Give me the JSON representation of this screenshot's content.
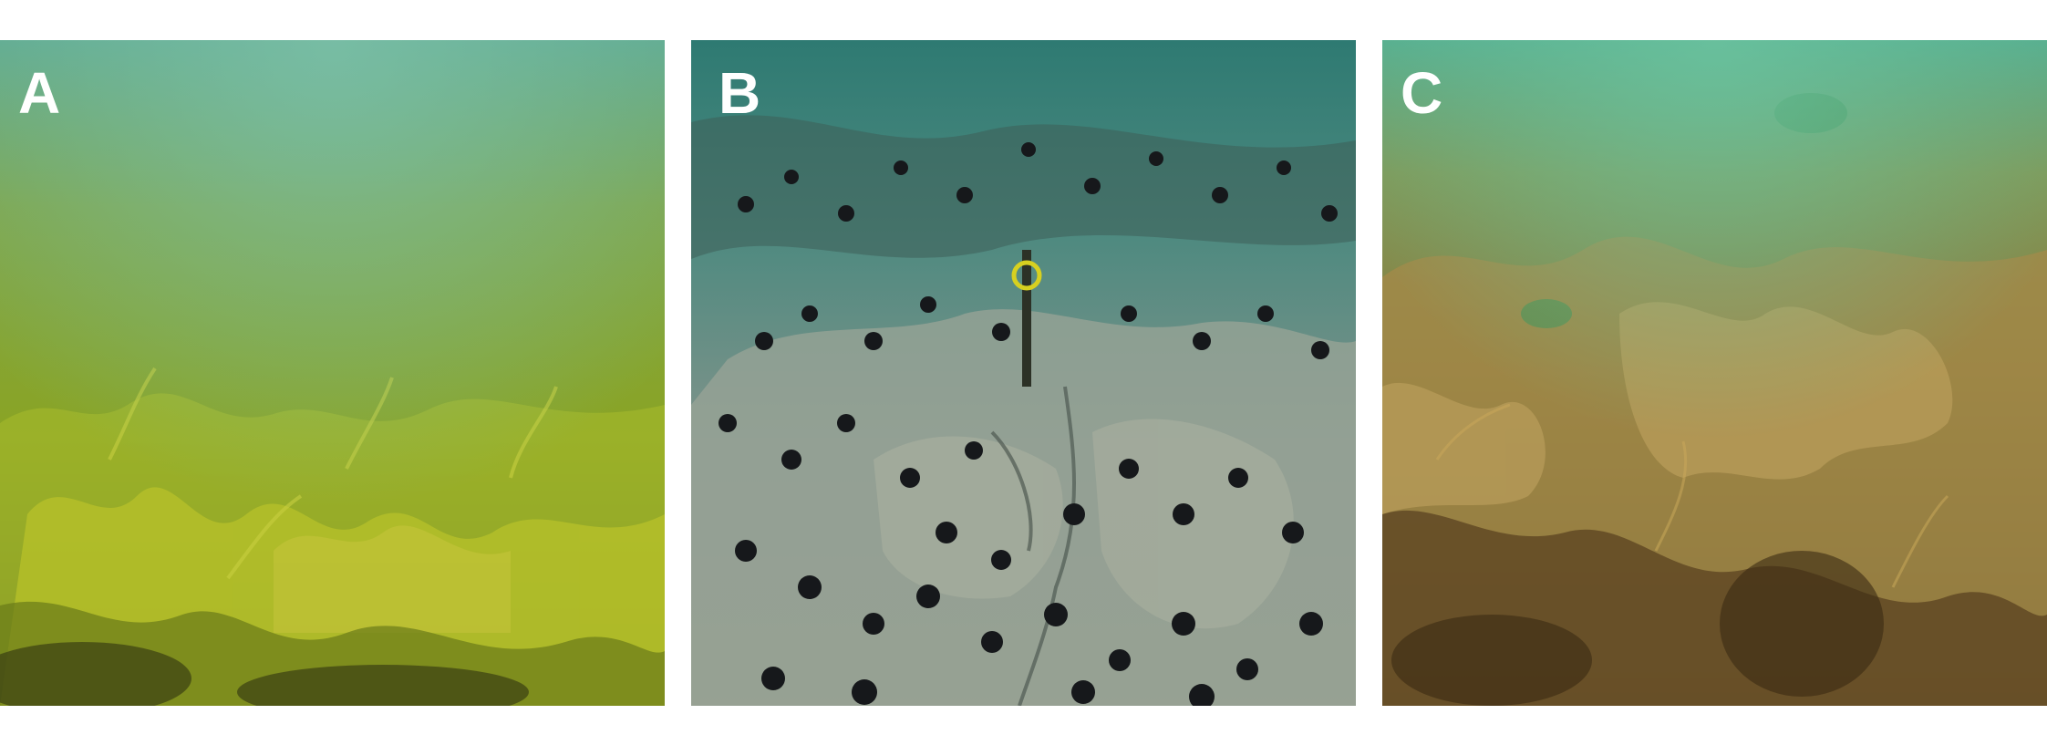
{
  "panels": [
    {
      "label": "A",
      "scene": "kelp-forest-yellow-green"
    },
    {
      "label": "B",
      "scene": "urchin-barren-rocky-reef"
    },
    {
      "label": "C",
      "scene": "kelp-forest-brown"
    }
  ],
  "colors": {
    "background": "#ffffff",
    "label": "#ffffff",
    "panel_a_water": "#5aa38a",
    "panel_a_kelp": "#8ea51f",
    "panel_b_water": "#2f7a72",
    "panel_b_rock": "#8d9a8c",
    "panel_b_urchin": "#15161a",
    "panel_c_water": "#4fa88a",
    "panel_c_kelp": "#8a7433"
  }
}
